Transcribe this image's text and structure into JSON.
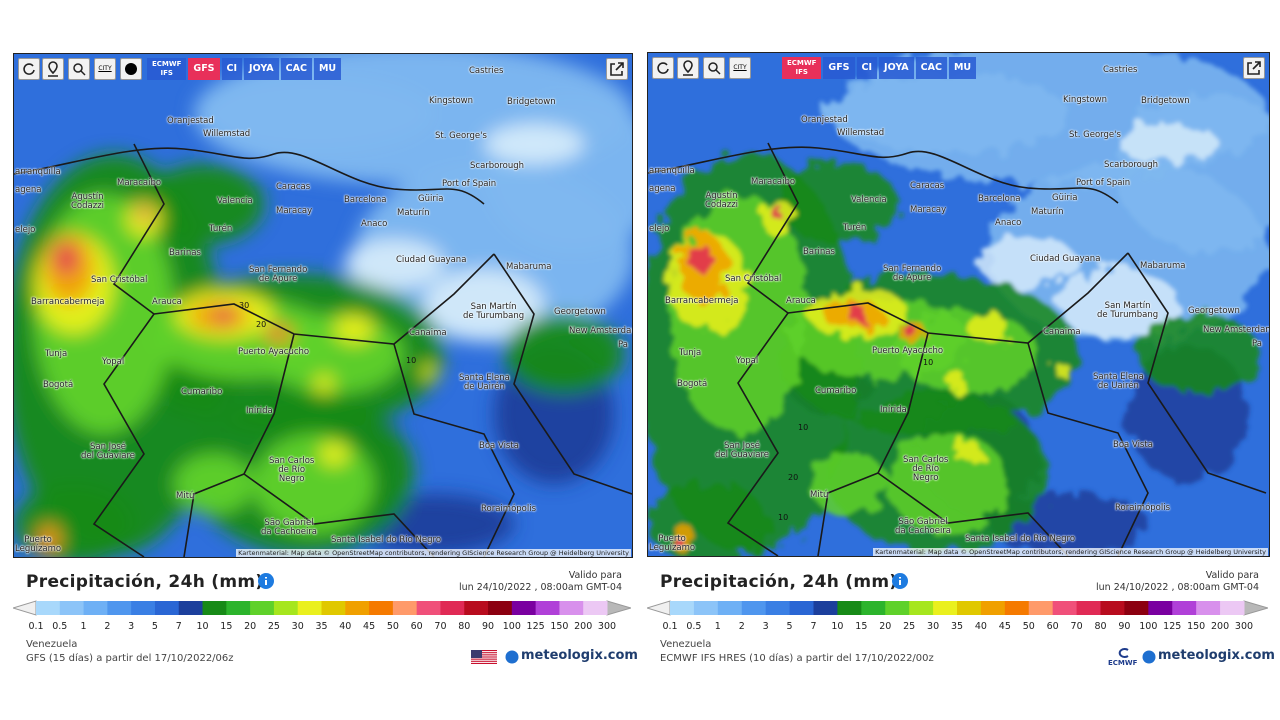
{
  "scale": {
    "labels": [
      "0.1",
      "0.5",
      "1",
      "2",
      "3",
      "5",
      "7",
      "10",
      "15",
      "20",
      "25",
      "30",
      "35",
      "40",
      "45",
      "50",
      "60",
      "70",
      "80",
      "90",
      "100",
      "125",
      "150",
      "200",
      "300"
    ],
    "colors": [
      "#a8d8fb",
      "#8cc4f8",
      "#6eb0f5",
      "#4f96ee",
      "#3a7fe4",
      "#2a66d4",
      "#1c3f9c",
      "#178a17",
      "#2cb42c",
      "#5fd12a",
      "#a6e61e",
      "#eaf01e",
      "#e0c800",
      "#f0a000",
      "#f57a00",
      "#ff9a6a",
      "#f0507a",
      "#e02a55",
      "#b80c1e",
      "#8c0010",
      "#7a00a0",
      "#b040d8",
      "#d890ec",
      "#ecc8f4",
      "#d8d8e0"
    ]
  },
  "panels": [
    {
      "toolbar": {
        "city": "CITY",
        "models": [
          "ECMWF\nIFS",
          "GFS",
          "CI",
          "JOYA",
          "CAC",
          "MU"
        ],
        "active": 1
      },
      "map_labels": [
        "Castries",
        "Kingstown",
        "Bridgetown",
        "Oranjestad",
        "Willemstad",
        "St. George's",
        "Scarborough",
        "arranquilla",
        "Maracaibo",
        "Caracas",
        "Port of Spain",
        "agena",
        "Agustín\nCodazzi",
        "Valencia",
        "Barcelona",
        "Güiria",
        "Maracay",
        "Maturín",
        "Anaco",
        "elejo",
        "Turén",
        "Barinas",
        "Ciudad Guayana",
        "Mabaruma",
        "San Fernando\nde Apure",
        "San Cristóbal",
        "Barrancabermeja",
        "Arauca",
        "San Martín\nde Turumbang",
        "Georgetown",
        "New Amsterdam",
        "Canaima",
        "Pa",
        "Puerto Ayacucho",
        "Tunja",
        "Yopal",
        "Bogotá",
        "Santa Elena\nde Uairén",
        "Cumaribo",
        "Inírida",
        "Boa Vista",
        "San José\ndel Guaviare",
        "San Carlos\nde Río\nNegro",
        "Mitú",
        "Roraimópolis",
        "São Gabriel\nda Cachoeira",
        "Santa Isabel do Rio Negro",
        "Puerto\nLeguízamo"
      ],
      "contour_labels": [
        "30",
        "20",
        "10"
      ],
      "attribution": "Kartenmaterial: Map data © OpenStreetMap contributors, rendering GIScience Research Group @ Heidelberg University",
      "title": "Precipitación, 24h (mm)",
      "valid": [
        "Valido para",
        "lun 24/10/2022 , 08:00am GMT-04"
      ],
      "region": "Venezuela",
      "model_run": "GFS (15 días) a partir del 17/10/2022/06z",
      "brand": "meteologix.com"
    },
    {
      "toolbar": {
        "city": "CITY",
        "models": [
          "ECMWF\nIFS",
          "GFS",
          "CI",
          "JOYA",
          "CAC",
          "MU"
        ],
        "active": 0
      },
      "map_labels": [
        "Castries",
        "Kingstown",
        "Bridgetown",
        "Oranjestad",
        "Willemstad",
        "St. George's",
        "Scarborough",
        "arranquilla",
        "Maracaibo",
        "Caracas",
        "Port of Spain",
        "agena",
        "Agustín\nCodazzi",
        "Valencia",
        "Barcelona",
        "Güiria",
        "Maracay",
        "Maturín",
        "Anaco",
        "elejo",
        "Turén",
        "Barinas",
        "Ciudad Guayana",
        "Mabaruma",
        "San Fernando\nde Apure",
        "San Cristóbal",
        "Barrancabermeja",
        "Arauca",
        "San Martín\nde Turumbang",
        "Georgetown",
        "New Amsterdam",
        "Canaima",
        "Pa",
        "Puerto Ayacucho",
        "Tunja",
        "Yopal",
        "Bogotá",
        "Santa Elena\nde Uairén",
        "Cumaribo",
        "Inírida",
        "Boa Vista",
        "San José\ndel Guaviare",
        "San Carlos\nde Río\nNegro",
        "Mitú",
        "Roraimópolis",
        "São Gabriel\nda Cachoeira",
        "Santa Isabel do Rio Negro",
        "Puerto\nLeguízamo"
      ],
      "contour_labels": [
        "10",
        "10",
        "10",
        "20"
      ],
      "attribution": "Kartenmaterial: Map data © OpenStreetMap contributors, rendering GIScience Research Group @ Heidelberg University",
      "title": "Precipitación, 24h (mm)",
      "valid": [
        "Valido para",
        "lun 24/10/2022 , 08:00am GMT-04"
      ],
      "region": "Venezuela",
      "model_run": "ECMWF IFS HRES (10 días) a partir del 17/10/2022/00z",
      "brand": "meteologix.com",
      "ecmwf_logo": "ECMWF"
    }
  ]
}
